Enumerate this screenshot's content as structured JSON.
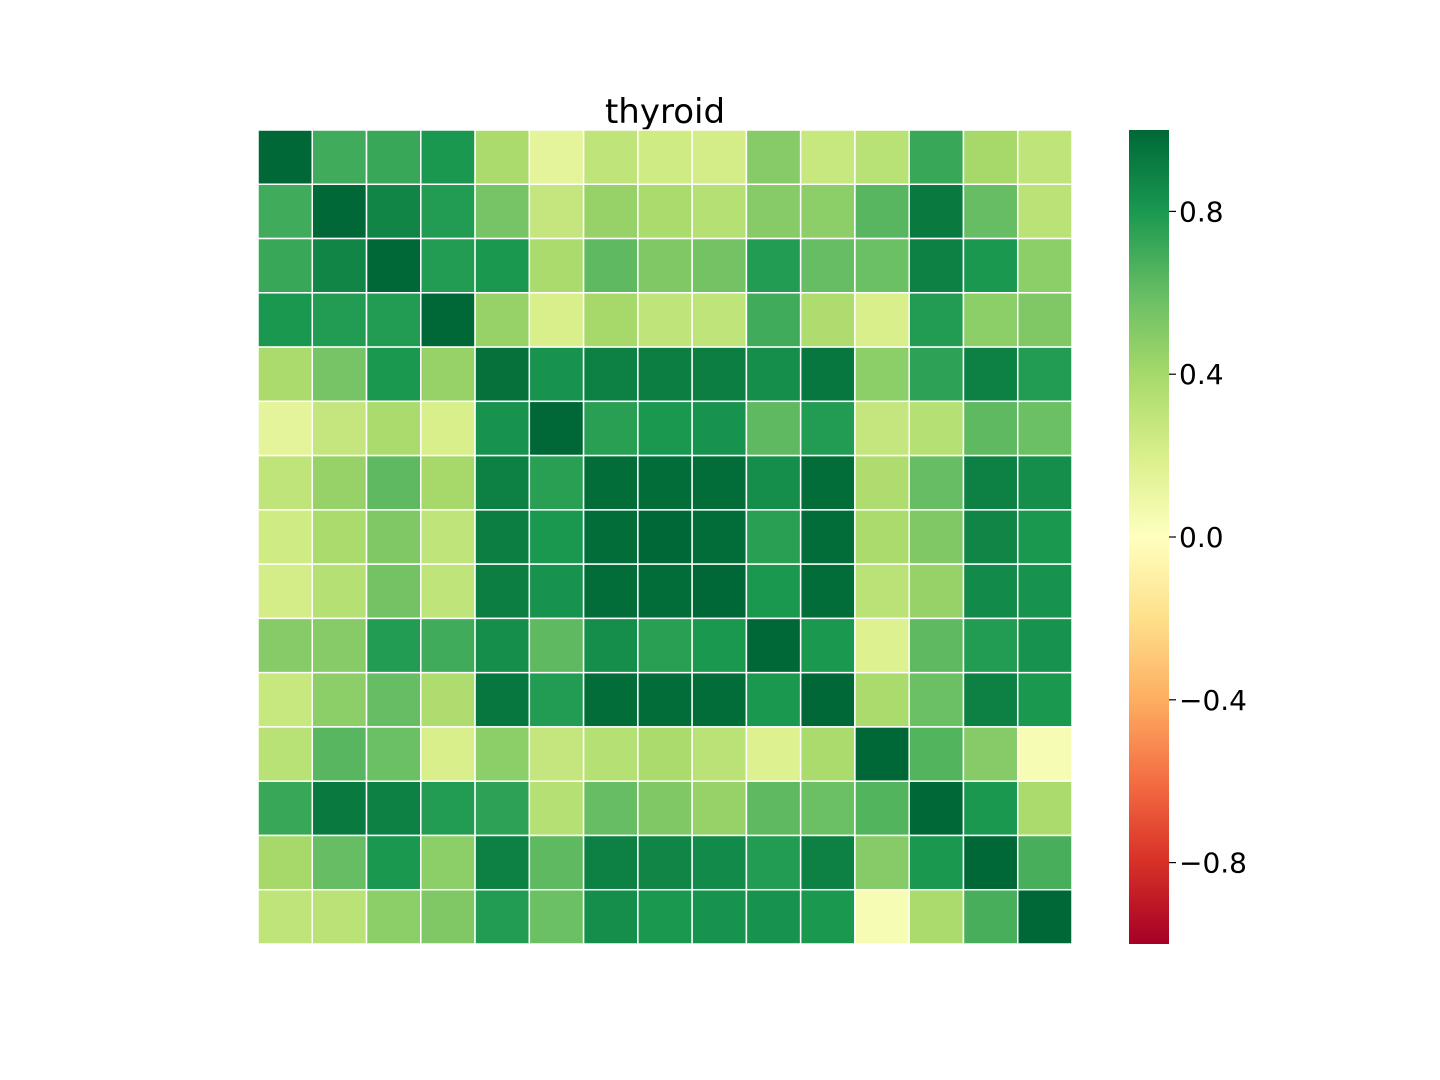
{
  "chart_data": {
    "type": "heatmap",
    "title": "thyroid",
    "xlabel": "",
    "ylabel": "",
    "colormap": "RdYlGn",
    "vmin": -1.0,
    "vmax": 1.0,
    "colorbar_ticks": [
      0.8,
      0.4,
      0.0,
      -0.4,
      -0.8
    ],
    "colorbar_tick_labels": [
      "0.8",
      "0.4",
      "0.0",
      "−0.4",
      "−0.8"
    ],
    "cell_border_color": "#ffffff",
    "values": [
      [
        1.0,
        0.7,
        0.72,
        0.8,
        0.38,
        0.14,
        0.3,
        0.24,
        0.22,
        0.5,
        0.27,
        0.33,
        0.72,
        0.4,
        0.3
      ],
      [
        0.7,
        1.0,
        0.88,
        0.78,
        0.55,
        0.28,
        0.45,
        0.38,
        0.34,
        0.5,
        0.48,
        0.64,
        0.93,
        0.6,
        0.32
      ],
      [
        0.72,
        0.88,
        1.0,
        0.78,
        0.8,
        0.38,
        0.62,
        0.52,
        0.56,
        0.78,
        0.6,
        0.58,
        0.9,
        0.8,
        0.48
      ],
      [
        0.8,
        0.78,
        0.78,
        1.0,
        0.45,
        0.2,
        0.4,
        0.3,
        0.3,
        0.7,
        0.37,
        0.2,
        0.78,
        0.48,
        0.52
      ],
      [
        0.38,
        0.55,
        0.8,
        0.45,
        0.96,
        0.82,
        0.9,
        0.91,
        0.91,
        0.84,
        0.94,
        0.48,
        0.75,
        0.9,
        0.78
      ],
      [
        0.14,
        0.28,
        0.38,
        0.2,
        0.82,
        1.0,
        0.76,
        0.8,
        0.82,
        0.62,
        0.78,
        0.28,
        0.34,
        0.62,
        0.58
      ],
      [
        0.3,
        0.45,
        0.62,
        0.4,
        0.9,
        0.76,
        0.98,
        0.98,
        0.98,
        0.84,
        0.98,
        0.37,
        0.6,
        0.9,
        0.84
      ],
      [
        0.24,
        0.38,
        0.52,
        0.3,
        0.91,
        0.8,
        0.98,
        1.0,
        0.98,
        0.76,
        0.98,
        0.38,
        0.52,
        0.88,
        0.8
      ],
      [
        0.22,
        0.34,
        0.56,
        0.3,
        0.91,
        0.82,
        0.98,
        0.98,
        1.0,
        0.8,
        0.98,
        0.32,
        0.45,
        0.86,
        0.82
      ],
      [
        0.5,
        0.5,
        0.78,
        0.7,
        0.84,
        0.62,
        0.84,
        0.76,
        0.8,
        1.0,
        0.8,
        0.18,
        0.62,
        0.78,
        0.82
      ],
      [
        0.27,
        0.48,
        0.6,
        0.37,
        0.94,
        0.78,
        0.98,
        0.98,
        0.98,
        0.8,
        1.0,
        0.38,
        0.58,
        0.9,
        0.8
      ],
      [
        0.33,
        0.64,
        0.58,
        0.2,
        0.48,
        0.28,
        0.34,
        0.38,
        0.32,
        0.18,
        0.38,
        1.0,
        0.65,
        0.5,
        0.04
      ],
      [
        0.72,
        0.93,
        0.9,
        0.78,
        0.75,
        0.34,
        0.6,
        0.52,
        0.45,
        0.62,
        0.58,
        0.65,
        1.0,
        0.8,
        0.38
      ],
      [
        0.4,
        0.6,
        0.8,
        0.48,
        0.9,
        0.62,
        0.9,
        0.88,
        0.86,
        0.78,
        0.9,
        0.5,
        0.8,
        1.0,
        0.68
      ],
      [
        0.3,
        0.32,
        0.48,
        0.52,
        0.78,
        0.58,
        0.84,
        0.8,
        0.82,
        0.82,
        0.8,
        0.04,
        0.38,
        0.68,
        1.0
      ]
    ]
  }
}
